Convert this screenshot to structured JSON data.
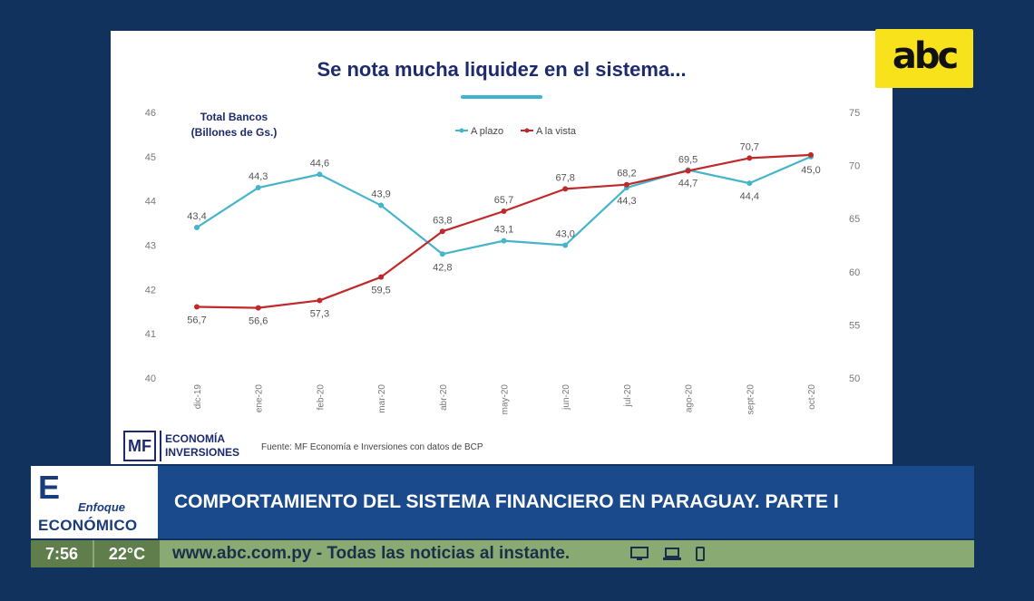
{
  "slide": {
    "title": "Se nota mucha liquidez en el sistema...",
    "source": "Fuente: MF Economía e Inversiones con datos de BCP",
    "logo": {
      "initials": "MF",
      "line1": "ECONOMÍA",
      "line2": "INVERSIONES"
    }
  },
  "brand": {
    "logo_text": "abc"
  },
  "chart_data": {
    "type": "line",
    "title": "Total Bancos (Billones de Gs.)",
    "title_line1": "Total Bancos",
    "title_line2": "(Billones de Gs.)",
    "categories": [
      "dic-19",
      "ene-20",
      "feb-20",
      "mar-20",
      "abr-20",
      "may-20",
      "jun-20",
      "jul-20",
      "ago-20",
      "sept-20",
      "oct-20"
    ],
    "series": [
      {
        "name": "A plazo",
        "axis": "left",
        "color": "#45b5c9",
        "values": [
          43.4,
          44.3,
          44.6,
          43.9,
          42.8,
          43.1,
          43.0,
          44.3,
          44.7,
          44.4,
          45.0
        ],
        "labels": [
          "43,4",
          "44,3",
          "44,6",
          "43,9",
          "42,8",
          "43,1",
          "43,0",
          "44,3",
          "44,7",
          "44,4",
          "45,0"
        ]
      },
      {
        "name": "A la vista",
        "axis": "right",
        "color": "#c0282a",
        "values": [
          56.7,
          56.6,
          57.3,
          59.5,
          63.8,
          65.7,
          67.8,
          68.2,
          69.5,
          70.7,
          71.0
        ],
        "labels": [
          "56,7",
          "56,6",
          "57,3",
          "59,5",
          "63,8",
          "65,7",
          "67,8",
          "68,2",
          "69,5",
          "70,7",
          ""
        ]
      }
    ],
    "left_axis": {
      "min": 40,
      "max": 46,
      "ticks": [
        "40",
        "41",
        "42",
        "43",
        "44",
        "45",
        "46"
      ]
    },
    "right_axis": {
      "min": 50,
      "max": 75,
      "ticks": [
        "50",
        "55",
        "60",
        "65",
        "70",
        "75"
      ]
    },
    "legend_position": "top-center"
  },
  "lower_third": {
    "brand_letter": "E",
    "brand_line1": "Enfoque",
    "brand_line2": "ECONÓMICO",
    "headline": "COMPORTAMIENTO DEL SISTEMA FINANCIERO EN PARAGUAY. PARTE I"
  },
  "ticker": {
    "time": "7:56",
    "temperature": "22°C",
    "text": "www.abc.com.py - Todas las noticias al instante."
  }
}
